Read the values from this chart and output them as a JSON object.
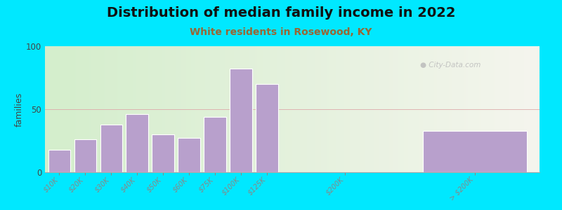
{
  "title": "Distribution of median family income in 2022",
  "subtitle": "White residents in Rosewood, KY",
  "ylabel": "families",
  "bar_labels": [
    "$10K",
    "$20K",
    "$30K",
    "$40K",
    "$50K",
    "$60K",
    "$75K",
    "$100K",
    "$125K",
    "$200K",
    "> $200K"
  ],
  "bar_values": [
    18,
    26,
    38,
    46,
    30,
    27,
    44,
    82,
    70,
    0,
    33
  ],
  "bar_color": "#b8a0cc",
  "bar_edgecolor": "#ffffff",
  "ylim": [
    0,
    100
  ],
  "yticks": [
    0,
    50,
    100
  ],
  "background_outer": "#00e8ff",
  "title_fontsize": 14,
  "subtitle_fontsize": 10,
  "subtitle_color": "#996633",
  "watermark": "City-Data.com",
  "positions": [
    0,
    1,
    2,
    3,
    4,
    5,
    6,
    7,
    8,
    11,
    16
  ],
  "bar_width": 0.85,
  "xlim_min": -0.55,
  "xlim_max": 18.5,
  "split_x": 9.5,
  "bg_left_color": "#d4eecc",
  "bg_right_color": "#eeeedd"
}
